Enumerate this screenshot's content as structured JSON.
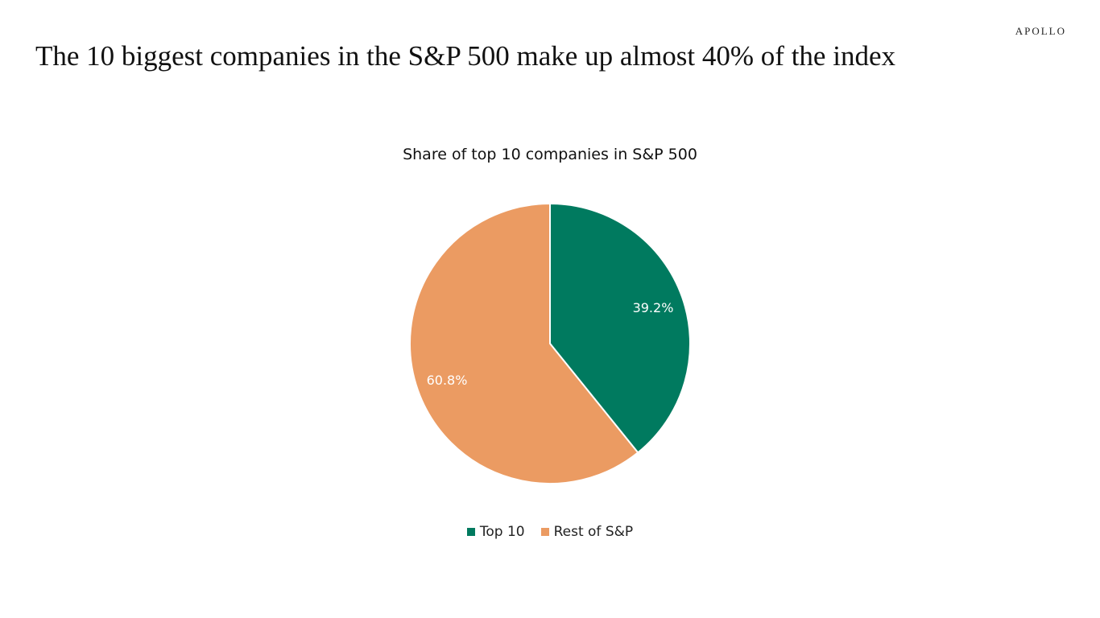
{
  "logo": "APOLLO",
  "headline": "The 10 biggest companies in the S&P 500 make up almost 40% of the index",
  "chart_data": {
    "type": "pie",
    "title": "Share of top 10 companies in S&P 500",
    "categories": [
      "Top 10",
      "Rest of S&P"
    ],
    "values": [
      39.2,
      60.8
    ],
    "labels": [
      "39.2%",
      "60.8%"
    ],
    "colors": [
      "#007A5F",
      "#EB9B62"
    ],
    "legend": "bottom"
  }
}
